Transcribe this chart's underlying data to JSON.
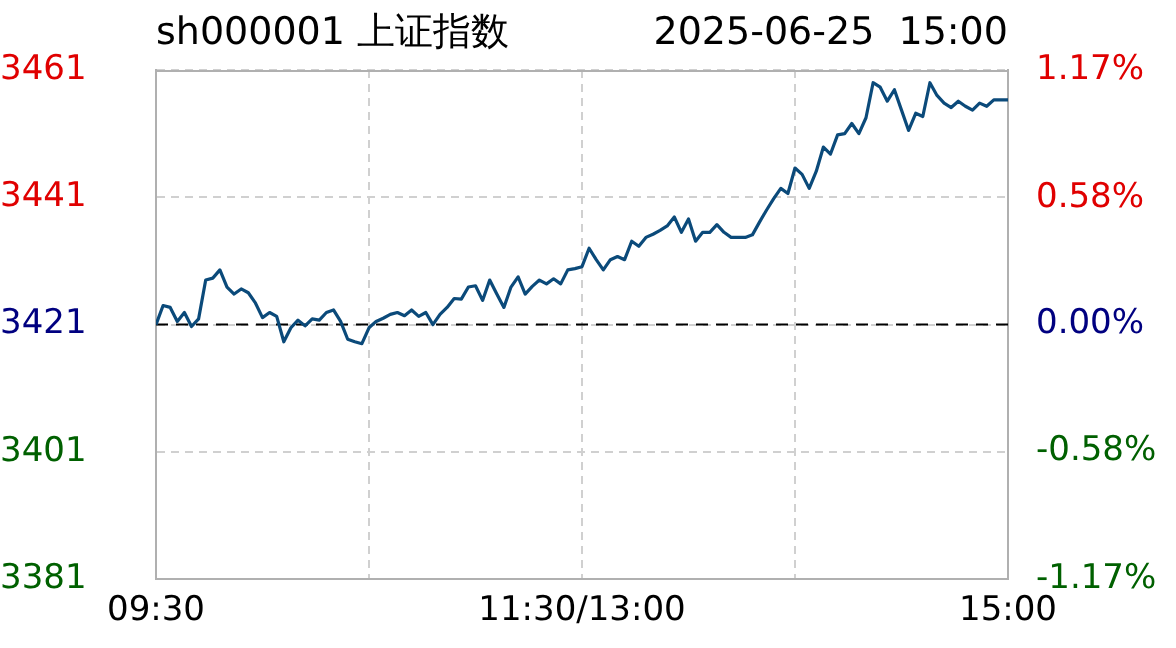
{
  "chart_data": {
    "type": "line",
    "title": "sh000001 上证指数",
    "subtitle": "2025-06-25  15:00",
    "categories": [
      "09:30",
      null,
      null,
      null,
      null,
      null,
      null,
      null,
      null,
      null,
      null,
      null,
      null,
      null,
      null,
      null,
      null,
      null,
      null,
      null,
      null,
      null,
      null,
      null,
      null,
      null,
      null,
      null,
      null,
      null,
      null,
      null,
      null,
      null,
      null,
      null,
      null,
      null,
      null,
      null,
      null,
      null,
      null,
      null,
      null,
      null,
      null,
      null,
      null,
      null,
      null,
      null,
      null,
      null,
      null,
      null,
      null,
      null,
      null,
      null,
      "11:30/13:00",
      null,
      null,
      null,
      null,
      null,
      null,
      null,
      null,
      null,
      null,
      null,
      null,
      null,
      null,
      null,
      null,
      null,
      null,
      null,
      null,
      null,
      null,
      null,
      null,
      null,
      null,
      null,
      null,
      null,
      null,
      null,
      null,
      null,
      null,
      null,
      null,
      null,
      null,
      null,
      null,
      null,
      null,
      null,
      null,
      null,
      null,
      null,
      null,
      null,
      null,
      null,
      null,
      null,
      null,
      null,
      null,
      null,
      null,
      null,
      "15:00"
    ],
    "series": [
      {
        "color": "#0b4a7a",
        "values": [
          3421.0,
          3424.0,
          3423.7,
          3421.5,
          3422.9,
          3420.7,
          3421.9,
          3428.0,
          3428.3,
          3429.6,
          3426.9,
          3425.8,
          3426.6,
          3426.0,
          3424.4,
          3422.1,
          3422.9,
          3422.3,
          3418.3,
          3420.5,
          3421.7,
          3420.8,
          3421.9,
          3421.7,
          3422.9,
          3423.3,
          3421.5,
          3418.7,
          3418.3,
          3418.0,
          3420.5,
          3421.5,
          3422.0,
          3422.6,
          3422.9,
          3422.4,
          3423.3,
          3422.3,
          3422.9,
          3421.0,
          3422.6,
          3423.7,
          3425.1,
          3425.0,
          3426.9,
          3427.1,
          3424.8,
          3428.0,
          3425.8,
          3423.7,
          3426.9,
          3428.5,
          3425.8,
          3427.0,
          3428.0,
          3427.4,
          3428.2,
          3427.4,
          3429.6,
          3429.8,
          3430.1,
          3433.0,
          3431.2,
          3429.6,
          3431.2,
          3431.7,
          3431.2,
          3434.1,
          3433.3,
          3434.7,
          3435.2,
          3435.8,
          3436.5,
          3437.9,
          3435.5,
          3437.6,
          3434.1,
          3435.5,
          3435.5,
          3436.7,
          3435.5,
          3434.7,
          3434.7,
          3434.7,
          3435.1,
          3437.1,
          3439.0,
          3440.8,
          3442.4,
          3441.6,
          3445.6,
          3444.6,
          3442.4,
          3445.1,
          3448.9,
          3447.8,
          3450.8,
          3451.0,
          3452.6,
          3451.0,
          3453.5,
          3459.0,
          3458.3,
          3456.1,
          3457.9,
          3454.7,
          3451.5,
          3454.2,
          3453.7,
          3459.0,
          3457.0,
          3455.8,
          3455.1,
          3456.1,
          3455.3,
          3454.7,
          3455.8,
          3455.3,
          3456.3,
          3456.3,
          3456.3
        ]
      }
    ],
    "ylim": [
      3381,
      3461
    ],
    "yticks": [
      3381,
      3401,
      3421,
      3441,
      3461
    ],
    "y2lim": [
      -1.17,
      1.17
    ],
    "y2ticks": [
      {
        "value": -1.17,
        "label": "-1.17%"
      },
      {
        "value": -0.58,
        "label": "-0.58%"
      },
      {
        "value": 0,
        "label": "0.00%"
      },
      {
        "value": 0.58,
        "label": "0.58%"
      },
      {
        "value": 1.17,
        "label": "1.17%"
      }
    ],
    "ref_lines": [
      {
        "axis": "y",
        "value": 3421,
        "color": "#000000",
        "line_style": "dashed"
      }
    ],
    "grid": true,
    "legend": false,
    "marker": "none",
    "line_style": "solid"
  }
}
